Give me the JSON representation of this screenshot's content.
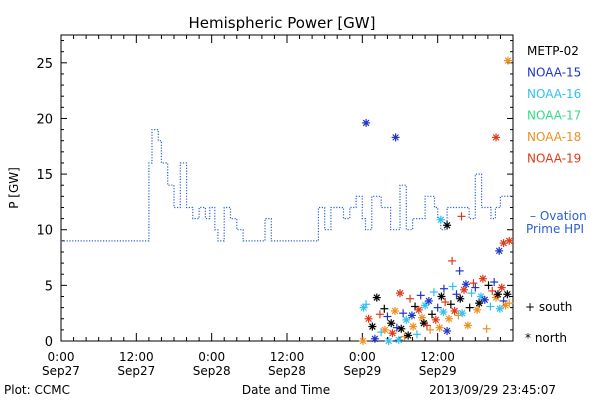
{
  "chart_data": {
    "type": "scatter",
    "title": "Hemispheric Power [GW]",
    "ylabel": "P [GW]",
    "xlabel": "Date and Time",
    "credit": "Plot: CCMC",
    "timestamp": "2013/09/29 23:45:07",
    "ylim": [
      0,
      27.5
    ],
    "xlim_hours": [
      0,
      72
    ],
    "grid": false,
    "legend_position": "right",
    "yticks": [
      0,
      5,
      10,
      15,
      20,
      25
    ],
    "xticks": [
      {
        "h": 0,
        "time": "0:00",
        "date": "Sep27"
      },
      {
        "h": 12,
        "time": "12:00",
        "date": "Sep27"
      },
      {
        "h": 24,
        "time": "0:00",
        "date": "Sep28"
      },
      {
        "h": 36,
        "time": "12:00",
        "date": "Sep28"
      },
      {
        "h": 48,
        "time": "0:00",
        "date": "Sep29"
      },
      {
        "h": 60,
        "time": "12:00",
        "date": "Sep29"
      }
    ],
    "ovation": {
      "label1": "– Ovation",
      "label2": "Prime HPI",
      "color": "#2a5fd6",
      "points": [
        [
          0,
          9
        ],
        [
          14,
          9
        ],
        [
          14,
          16
        ],
        [
          14.5,
          16
        ],
        [
          14.5,
          19
        ],
        [
          15.5,
          19
        ],
        [
          15.5,
          18
        ],
        [
          16,
          18
        ],
        [
          16,
          16
        ],
        [
          17,
          16
        ],
        [
          17,
          14
        ],
        [
          18,
          14
        ],
        [
          18,
          12
        ],
        [
          19,
          12
        ],
        [
          19,
          16
        ],
        [
          20,
          16
        ],
        [
          20,
          12
        ],
        [
          21,
          12
        ],
        [
          21,
          11
        ],
        [
          22,
          11
        ],
        [
          22,
          12
        ],
        [
          23,
          12
        ],
        [
          23,
          11
        ],
        [
          23.7,
          11
        ],
        [
          23.7,
          12
        ],
        [
          24.5,
          12
        ],
        [
          24.5,
          10
        ],
        [
          25,
          10
        ],
        [
          25,
          9
        ],
        [
          26,
          9
        ],
        [
          26,
          12
        ],
        [
          27,
          12
        ],
        [
          27,
          11
        ],
        [
          28,
          11
        ],
        [
          28,
          10
        ],
        [
          29,
          10
        ],
        [
          29,
          9
        ],
        [
          32.5,
          9
        ],
        [
          32.5,
          11
        ],
        [
          33.5,
          11
        ],
        [
          33.5,
          9
        ],
        [
          41,
          9
        ],
        [
          41,
          12
        ],
        [
          42,
          12
        ],
        [
          42,
          10
        ],
        [
          43,
          10
        ],
        [
          43,
          12
        ],
        [
          45,
          12
        ],
        [
          45,
          11
        ],
        [
          46,
          11
        ],
        [
          46,
          12
        ],
        [
          47,
          12
        ],
        [
          47,
          13
        ],
        [
          48,
          13
        ],
        [
          48,
          11
        ],
        [
          48.5,
          11
        ],
        [
          48.5,
          10
        ],
        [
          49.5,
          10
        ],
        [
          49.5,
          13
        ],
        [
          51,
          13
        ],
        [
          51,
          12
        ],
        [
          52.5,
          12
        ],
        [
          52.5,
          10
        ],
        [
          54,
          10
        ],
        [
          54,
          14
        ],
        [
          55,
          14
        ],
        [
          55,
          10
        ],
        [
          56,
          10
        ],
        [
          56,
          11
        ],
        [
          58,
          11
        ],
        [
          58,
          13
        ],
        [
          59.5,
          13
        ],
        [
          59.5,
          12
        ],
        [
          60,
          12
        ],
        [
          60,
          11
        ],
        [
          60.5,
          11
        ],
        [
          60.5,
          10
        ],
        [
          61.5,
          10
        ],
        [
          61.5,
          12
        ],
        [
          65,
          12
        ],
        [
          65,
          11
        ],
        [
          66,
          11
        ],
        [
          66,
          15
        ],
        [
          67,
          15
        ],
        [
          67,
          12
        ],
        [
          68.5,
          12
        ],
        [
          68.5,
          11
        ],
        [
          69.2,
          11
        ],
        [
          69.2,
          12
        ],
        [
          70,
          12
        ],
        [
          70,
          13
        ],
        [
          72,
          13
        ]
      ]
    },
    "series": [
      {
        "name": "METP-02",
        "color": "#000000"
      },
      {
        "name": "NOAA-15",
        "color": "#1f35c8"
      },
      {
        "name": "NOAA-16",
        "color": "#33c0ee"
      },
      {
        "name": "NOAA-17",
        "color": "#33dd88"
      },
      {
        "name": "NOAA-18",
        "color": "#f09020"
      },
      {
        "name": "NOAA-19",
        "color": "#e03a1a"
      }
    ],
    "points": [
      {
        "s": "NOAA-15",
        "m": "north",
        "x": 48.6,
        "y": 19.6
      },
      {
        "s": "NOAA-15",
        "m": "north",
        "x": 53.3,
        "y": 18.3
      },
      {
        "s": "NOAA-18",
        "m": "north",
        "x": 71.2,
        "y": 25.2
      },
      {
        "s": "NOAA-19",
        "m": "north",
        "x": 69.3,
        "y": 18.3
      },
      {
        "s": "NOAA-16",
        "m": "north",
        "x": 60.5,
        "y": 10.9
      },
      {
        "s": "METP-02",
        "m": "north",
        "x": 61.5,
        "y": 10.4
      },
      {
        "s": "NOAA-19",
        "m": "plus",
        "x": 63.8,
        "y": 11.2
      },
      {
        "s": "NOAA-19",
        "m": "plus",
        "x": 62.3,
        "y": 7.2
      },
      {
        "s": "NOAA-15",
        "m": "plus",
        "x": 63.5,
        "y": 6.3
      },
      {
        "s": "NOAA-15",
        "m": "plus",
        "x": 61.0,
        "y": 4.7
      },
      {
        "s": "NOAA-19",
        "m": "north",
        "x": 70.5,
        "y": 8.8
      },
      {
        "s": "NOAA-15",
        "m": "north",
        "x": 69.8,
        "y": 8.1
      },
      {
        "s": "NOAA-19",
        "m": "north",
        "x": 71.4,
        "y": 9.0
      },
      {
        "s": "NOAA-16",
        "m": "north",
        "x": 48.2,
        "y": 3.0
      },
      {
        "s": "NOAA-16",
        "m": "plus",
        "x": 48.6,
        "y": 3.3
      },
      {
        "s": "NOAA-19",
        "m": "north",
        "x": 49.0,
        "y": 2.0
      },
      {
        "s": "METP-02",
        "m": "north",
        "x": 49.6,
        "y": 1.3
      },
      {
        "s": "METP-02",
        "m": "north",
        "x": 50.3,
        "y": 3.9
      },
      {
        "s": "NOAA-15",
        "m": "north",
        "x": 50.0,
        "y": 0.2
      },
      {
        "s": "NOAA-18",
        "m": "north",
        "x": 48.1,
        "y": 0.0
      },
      {
        "s": "NOAA-19",
        "m": "plus",
        "x": 50.8,
        "y": 2.4
      },
      {
        "s": "NOAA-16",
        "m": "plus",
        "x": 51.0,
        "y": 0.8
      },
      {
        "s": "METP-02",
        "m": "plus",
        "x": 51.5,
        "y": 2.9
      },
      {
        "s": "NOAA-18",
        "m": "north",
        "x": 51.6,
        "y": 1.0
      },
      {
        "s": "NOAA-15",
        "m": "plus",
        "x": 52.0,
        "y": 2.2
      },
      {
        "s": "NOAA-16",
        "m": "north",
        "x": 52.2,
        "y": 0.0
      },
      {
        "s": "METP-02",
        "m": "north",
        "x": 52.6,
        "y": 1.6
      },
      {
        "s": "NOAA-19",
        "m": "north",
        "x": 52.8,
        "y": 0.7
      },
      {
        "s": "NOAA-18",
        "m": "north",
        "x": 53.2,
        "y": 2.7
      },
      {
        "s": "NOAA-15",
        "m": "plus",
        "x": 53.5,
        "y": 1.2
      },
      {
        "s": "NOAA-16",
        "m": "north",
        "x": 53.8,
        "y": 0.1
      },
      {
        "s": "NOAA-19",
        "m": "north",
        "x": 54.0,
        "y": 4.3
      },
      {
        "s": "METP-02",
        "m": "north",
        "x": 54.2,
        "y": 1.1
      },
      {
        "s": "NOAA-15",
        "m": "plus",
        "x": 54.5,
        "y": 2.5
      },
      {
        "s": "NOAA-18",
        "m": "plus",
        "x": 54.7,
        "y": 0.4
      },
      {
        "s": "NOAA-16",
        "m": "north",
        "x": 55.0,
        "y": 1.9
      },
      {
        "s": "METP-02",
        "m": "north",
        "x": 55.3,
        "y": 0.5
      },
      {
        "s": "NOAA-19",
        "m": "plus",
        "x": 55.6,
        "y": 3.8
      },
      {
        "s": "NOAA-15",
        "m": "north",
        "x": 55.9,
        "y": 2.3
      },
      {
        "s": "NOAA-18",
        "m": "north",
        "x": 56.1,
        "y": 1.3
      },
      {
        "s": "METP-02",
        "m": "plus",
        "x": 56.4,
        "y": 3.1
      },
      {
        "s": "NOAA-16",
        "m": "plus",
        "x": 56.7,
        "y": 0.6
      },
      {
        "s": "NOAA-19",
        "m": "north",
        "x": 57.0,
        "y": 2.8
      },
      {
        "s": "NOAA-15",
        "m": "plus",
        "x": 57.3,
        "y": 4.1
      },
      {
        "s": "NOAA-18",
        "m": "north",
        "x": 57.5,
        "y": 2.1
      },
      {
        "s": "METP-02",
        "m": "north",
        "x": 57.8,
        "y": 1.6
      },
      {
        "s": "NOAA-16",
        "m": "north",
        "x": 58.0,
        "y": 3.2
      },
      {
        "s": "NOAA-19",
        "m": "plus",
        "x": 58.3,
        "y": 1.4
      },
      {
        "s": "NOAA-15",
        "m": "north",
        "x": 58.6,
        "y": 3.6
      },
      {
        "s": "NOAA-18",
        "m": "plus",
        "x": 58.8,
        "y": 1.0
      },
      {
        "s": "METP-02",
        "m": "plus",
        "x": 59.1,
        "y": 2.4
      },
      {
        "s": "NOAA-16",
        "m": "plus",
        "x": 59.4,
        "y": 4.4
      },
      {
        "s": "NOAA-19",
        "m": "north",
        "x": 59.7,
        "y": 1.9
      },
      {
        "s": "NOAA-15",
        "m": "plus",
        "x": 60.0,
        "y": 3.0
      },
      {
        "s": "NOAA-18",
        "m": "north",
        "x": 60.3,
        "y": 1.2
      },
      {
        "s": "METP-02",
        "m": "north",
        "x": 60.6,
        "y": 4.0
      },
      {
        "s": "NOAA-16",
        "m": "north",
        "x": 60.9,
        "y": 2.6
      },
      {
        "s": "NOAA-19",
        "m": "plus",
        "x": 61.2,
        "y": 3.5
      },
      {
        "s": "NOAA-15",
        "m": "north",
        "x": 61.5,
        "y": 0.9
      },
      {
        "s": "NOAA-18",
        "m": "north",
        "x": 61.8,
        "y": 2.0
      },
      {
        "s": "METP-02",
        "m": "plus",
        "x": 62.1,
        "y": 3.3
      },
      {
        "s": "NOAA-16",
        "m": "plus",
        "x": 62.4,
        "y": 4.9
      },
      {
        "s": "NOAA-19",
        "m": "north",
        "x": 62.7,
        "y": 2.7
      },
      {
        "s": "NOAA-15",
        "m": "plus",
        "x": 63.0,
        "y": 4.2
      },
      {
        "s": "NOAA-18",
        "m": "plus",
        "x": 63.3,
        "y": 2.3
      },
      {
        "s": "METP-02",
        "m": "north",
        "x": 63.6,
        "y": 3.8
      },
      {
        "s": "NOAA-16",
        "m": "north",
        "x": 63.9,
        "y": 2.5
      },
      {
        "s": "NOAA-19",
        "m": "north",
        "x": 64.2,
        "y": 4.6
      },
      {
        "s": "NOAA-15",
        "m": "north",
        "x": 64.5,
        "y": 5.1
      },
      {
        "s": "NOAA-18",
        "m": "north",
        "x": 64.8,
        "y": 1.4
      },
      {
        "s": "METP-02",
        "m": "plus",
        "x": 65.1,
        "y": 3.0
      },
      {
        "s": "NOAA-16",
        "m": "plus",
        "x": 65.4,
        "y": 4.3
      },
      {
        "s": "NOAA-19",
        "m": "plus",
        "x": 65.7,
        "y": 5.2
      },
      {
        "s": "NOAA-15",
        "m": "plus",
        "x": 66.0,
        "y": 4.8
      },
      {
        "s": "NOAA-18",
        "m": "north",
        "x": 66.3,
        "y": 2.8
      },
      {
        "s": "METP-02",
        "m": "north",
        "x": 66.6,
        "y": 3.4
      },
      {
        "s": "NOAA-16",
        "m": "north",
        "x": 66.9,
        "y": 4.0
      },
      {
        "s": "NOAA-19",
        "m": "north",
        "x": 67.2,
        "y": 5.6
      },
      {
        "s": "NOAA-15",
        "m": "north",
        "x": 67.5,
        "y": 3.7
      },
      {
        "s": "NOAA-18",
        "m": "plus",
        "x": 67.8,
        "y": 1.1
      },
      {
        "s": "METP-02",
        "m": "plus",
        "x": 68.1,
        "y": 5.0
      },
      {
        "s": "NOAA-16",
        "m": "plus",
        "x": 68.4,
        "y": 3.1
      },
      {
        "s": "NOAA-19",
        "m": "plus",
        "x": 68.7,
        "y": 4.5
      },
      {
        "s": "NOAA-15",
        "m": "plus",
        "x": 69.0,
        "y": 5.3
      },
      {
        "s": "NOAA-18",
        "m": "north",
        "x": 69.3,
        "y": 3.9
      },
      {
        "s": "METP-02",
        "m": "north",
        "x": 69.6,
        "y": 4.2
      },
      {
        "s": "NOAA-16",
        "m": "north",
        "x": 69.9,
        "y": 2.9
      },
      {
        "s": "NOAA-19",
        "m": "north",
        "x": 70.2,
        "y": 4.8
      },
      {
        "s": "NOAA-15",
        "m": "plus",
        "x": 70.5,
        "y": 3.6
      },
      {
        "s": "NOAA-18",
        "m": "north",
        "x": 70.8,
        "y": 3.2
      },
      {
        "s": "METP-02",
        "m": "north",
        "x": 71.1,
        "y": 4.2
      },
      {
        "s": "NOAA-18",
        "m": "plus",
        "x": 71.4,
        "y": 3.4
      }
    ],
    "markers_legend": {
      "south": "+ south",
      "north": "* north"
    }
  }
}
